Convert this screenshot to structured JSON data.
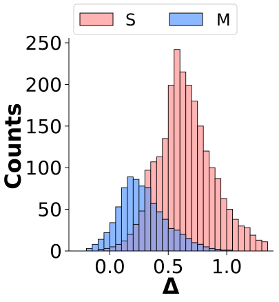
{
  "chart_data": {
    "type": "bar",
    "subtype": "overlaid-histogram",
    "xlabel": "Δ",
    "ylabel": "Counts",
    "xlim": [
      -0.35,
      1.4
    ],
    "ylim": [
      0,
      255
    ],
    "xticks": [
      0.0,
      0.5,
      1.0
    ],
    "xtick_labels": [
      "0.0",
      "0.5",
      "1.0"
    ],
    "yticks": [
      0,
      50,
      100,
      150,
      200,
      250
    ],
    "ytick_labels": [
      "0",
      "50",
      "100",
      "150",
      "200",
      "250"
    ],
    "bin_edges": [
      -0.3,
      -0.25,
      -0.2,
      -0.15,
      -0.1,
      -0.05,
      0.0,
      0.05,
      0.1,
      0.15,
      0.2,
      0.25,
      0.3,
      0.35,
      0.4,
      0.45,
      0.5,
      0.55,
      0.6,
      0.65,
      0.7,
      0.75,
      0.8,
      0.85,
      0.9,
      0.95,
      1.0,
      1.05,
      1.1,
      1.15,
      1.2,
      1.25,
      1.3,
      1.35
    ],
    "grid": false,
    "legend": {
      "placement": "top-center",
      "columns": 2
    },
    "series": [
      {
        "name": "S",
        "color": "#ffb3b3",
        "values": [
          0,
          0,
          0,
          0,
          2,
          3,
          5,
          8,
          12,
          20,
          32,
          48,
          97,
          107,
          113,
          135,
          199,
          242,
          215,
          199,
          180,
          150,
          120,
          100,
          87,
          63,
          50,
          38,
          30,
          28,
          19,
          13,
          11,
          4
        ]
      },
      {
        "name": "M",
        "color": "#8cb8ff",
        "values": [
          0,
          0,
          3,
          8,
          14,
          22,
          34,
          53,
          76,
          89,
          86,
          78,
          76,
          57,
          47,
          38,
          27,
          25,
          20,
          15,
          10,
          8,
          5,
          3,
          2,
          1,
          1,
          0,
          0,
          0,
          0,
          0,
          0,
          0
        ]
      }
    ]
  }
}
